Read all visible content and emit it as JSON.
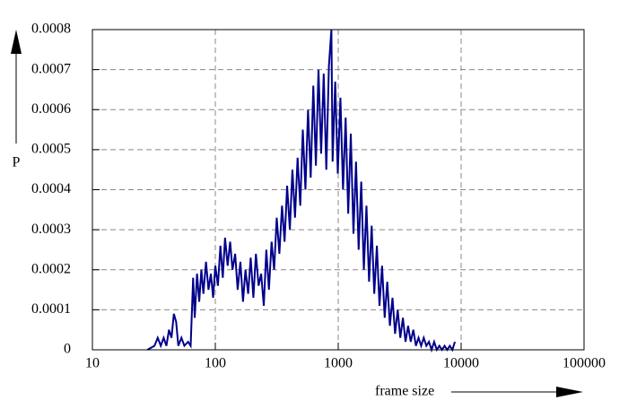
{
  "chart_data": {
    "type": "line",
    "x_label": "frame size",
    "y_label": "P",
    "log_x": true,
    "grid": true,
    "xlim": [
      10,
      100000
    ],
    "xticks": [
      10,
      100,
      1000,
      10000,
      100000
    ],
    "ylim": [
      0,
      0.0008
    ],
    "yticks": [
      0,
      0.0001,
      0.0002,
      0.0003,
      0.0004,
      0.0005,
      0.0006,
      0.0007,
      0.0008
    ],
    "series": [
      {
        "color": "#00008b",
        "x": [
          28,
          32,
          34,
          36,
          38,
          40,
          42,
          44,
          46,
          48,
          50,
          53,
          56,
          60,
          63,
          66,
          68,
          71,
          74,
          77,
          80,
          84,
          88,
          92,
          96,
          100,
          105,
          110,
          115,
          120,
          126,
          132,
          138,
          145,
          152,
          160,
          168,
          176,
          185,
          194,
          204,
          214,
          225,
          236,
          248,
          260,
          273,
          287,
          301,
          316,
          332,
          349,
          366,
          384,
          404,
          424,
          445,
          467,
          491,
          515,
          541,
          568,
          597,
          627,
          658,
          691,
          726,
          762,
          800,
          840,
          880,
          900,
          945,
          992,
          1042,
          1094,
          1149,
          1206,
          1266,
          1330,
          1396,
          1466,
          1539,
          1616,
          1697,
          1782,
          1871,
          1964,
          2063,
          2166,
          2274,
          2388,
          2507,
          2632,
          2764,
          2902,
          3047,
          3200,
          3360,
          3528,
          3704,
          3889,
          4084,
          4288,
          4502,
          4728,
          4964,
          5212,
          5473,
          5747,
          6034,
          6336,
          6652,
          6985,
          7334,
          7701,
          8086,
          8490,
          8900
        ],
        "values": [
          0,
          1e-05,
          3e-05,
          1e-05,
          3e-05,
          1e-05,
          5e-05,
          3e-05,
          9e-05,
          7e-05,
          1e-05,
          3e-05,
          1e-05,
          2e-05,
          1e-05,
          0.00018,
          8e-05,
          0.00019,
          0.00012,
          0.0002,
          0.00014,
          0.00022,
          0.00015,
          0.00019,
          0.00013,
          0.00021,
          0.00016,
          0.00026,
          0.00018,
          0.00028,
          0.00021,
          0.00027,
          0.0002,
          0.00024,
          0.00015,
          0.00022,
          0.00012,
          0.0002,
          0.00014,
          0.00023,
          0.00013,
          0.00024,
          0.00016,
          0.00019,
          0.00011,
          0.00025,
          0.00015,
          0.00027,
          0.0002,
          0.00033,
          0.00024,
          0.00036,
          0.00027,
          0.00041,
          0.0003,
          0.00045,
          0.00033,
          0.00048,
          0.00036,
          0.00055,
          0.0004,
          0.0006,
          0.00043,
          0.00066,
          0.00046,
          0.0007,
          0.00049,
          0.00069,
          0.00045,
          0.00071,
          0.0008,
          0.00047,
          0.00067,
          0.00044,
          0.00063,
          0.0004,
          0.00058,
          0.00034,
          0.00054,
          0.00029,
          0.00047,
          0.00025,
          0.00042,
          0.0002,
          0.00036,
          0.00017,
          0.00031,
          0.00014,
          0.00026,
          0.00011,
          0.00021,
          8e-05,
          0.00017,
          6e-05,
          0.00013,
          4e-05,
          0.0001,
          3e-05,
          8e-05,
          2e-05,
          6e-05,
          2e-05,
          5e-05,
          1e-05,
          3e-05,
          1e-05,
          3e-05,
          1e-05,
          2e-05,
          0,
          2e-05,
          0,
          1e-05,
          0,
          1e-05,
          0,
          1e-05,
          0,
          2e-05
        ]
      }
    ]
  }
}
